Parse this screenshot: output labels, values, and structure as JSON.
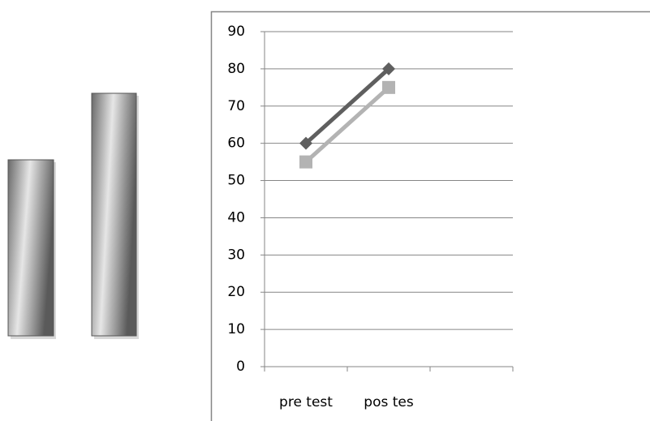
{
  "chart_data": {
    "type": "line",
    "categories": [
      "pre test",
      "pos tes",
      null
    ],
    "series": [
      {
        "color": "#5f5f5f",
        "marker": "diamond",
        "values": [
          60,
          80,
          null
        ]
      },
      {
        "color": "#b3b3b3",
        "marker": "square",
        "values": [
          55,
          75,
          null
        ]
      }
    ],
    "ylim": [
      0,
      90
    ],
    "yticks": [
      0,
      10,
      20,
      30,
      40,
      50,
      60,
      70,
      80,
      90
    ],
    "grid": true
  }
}
